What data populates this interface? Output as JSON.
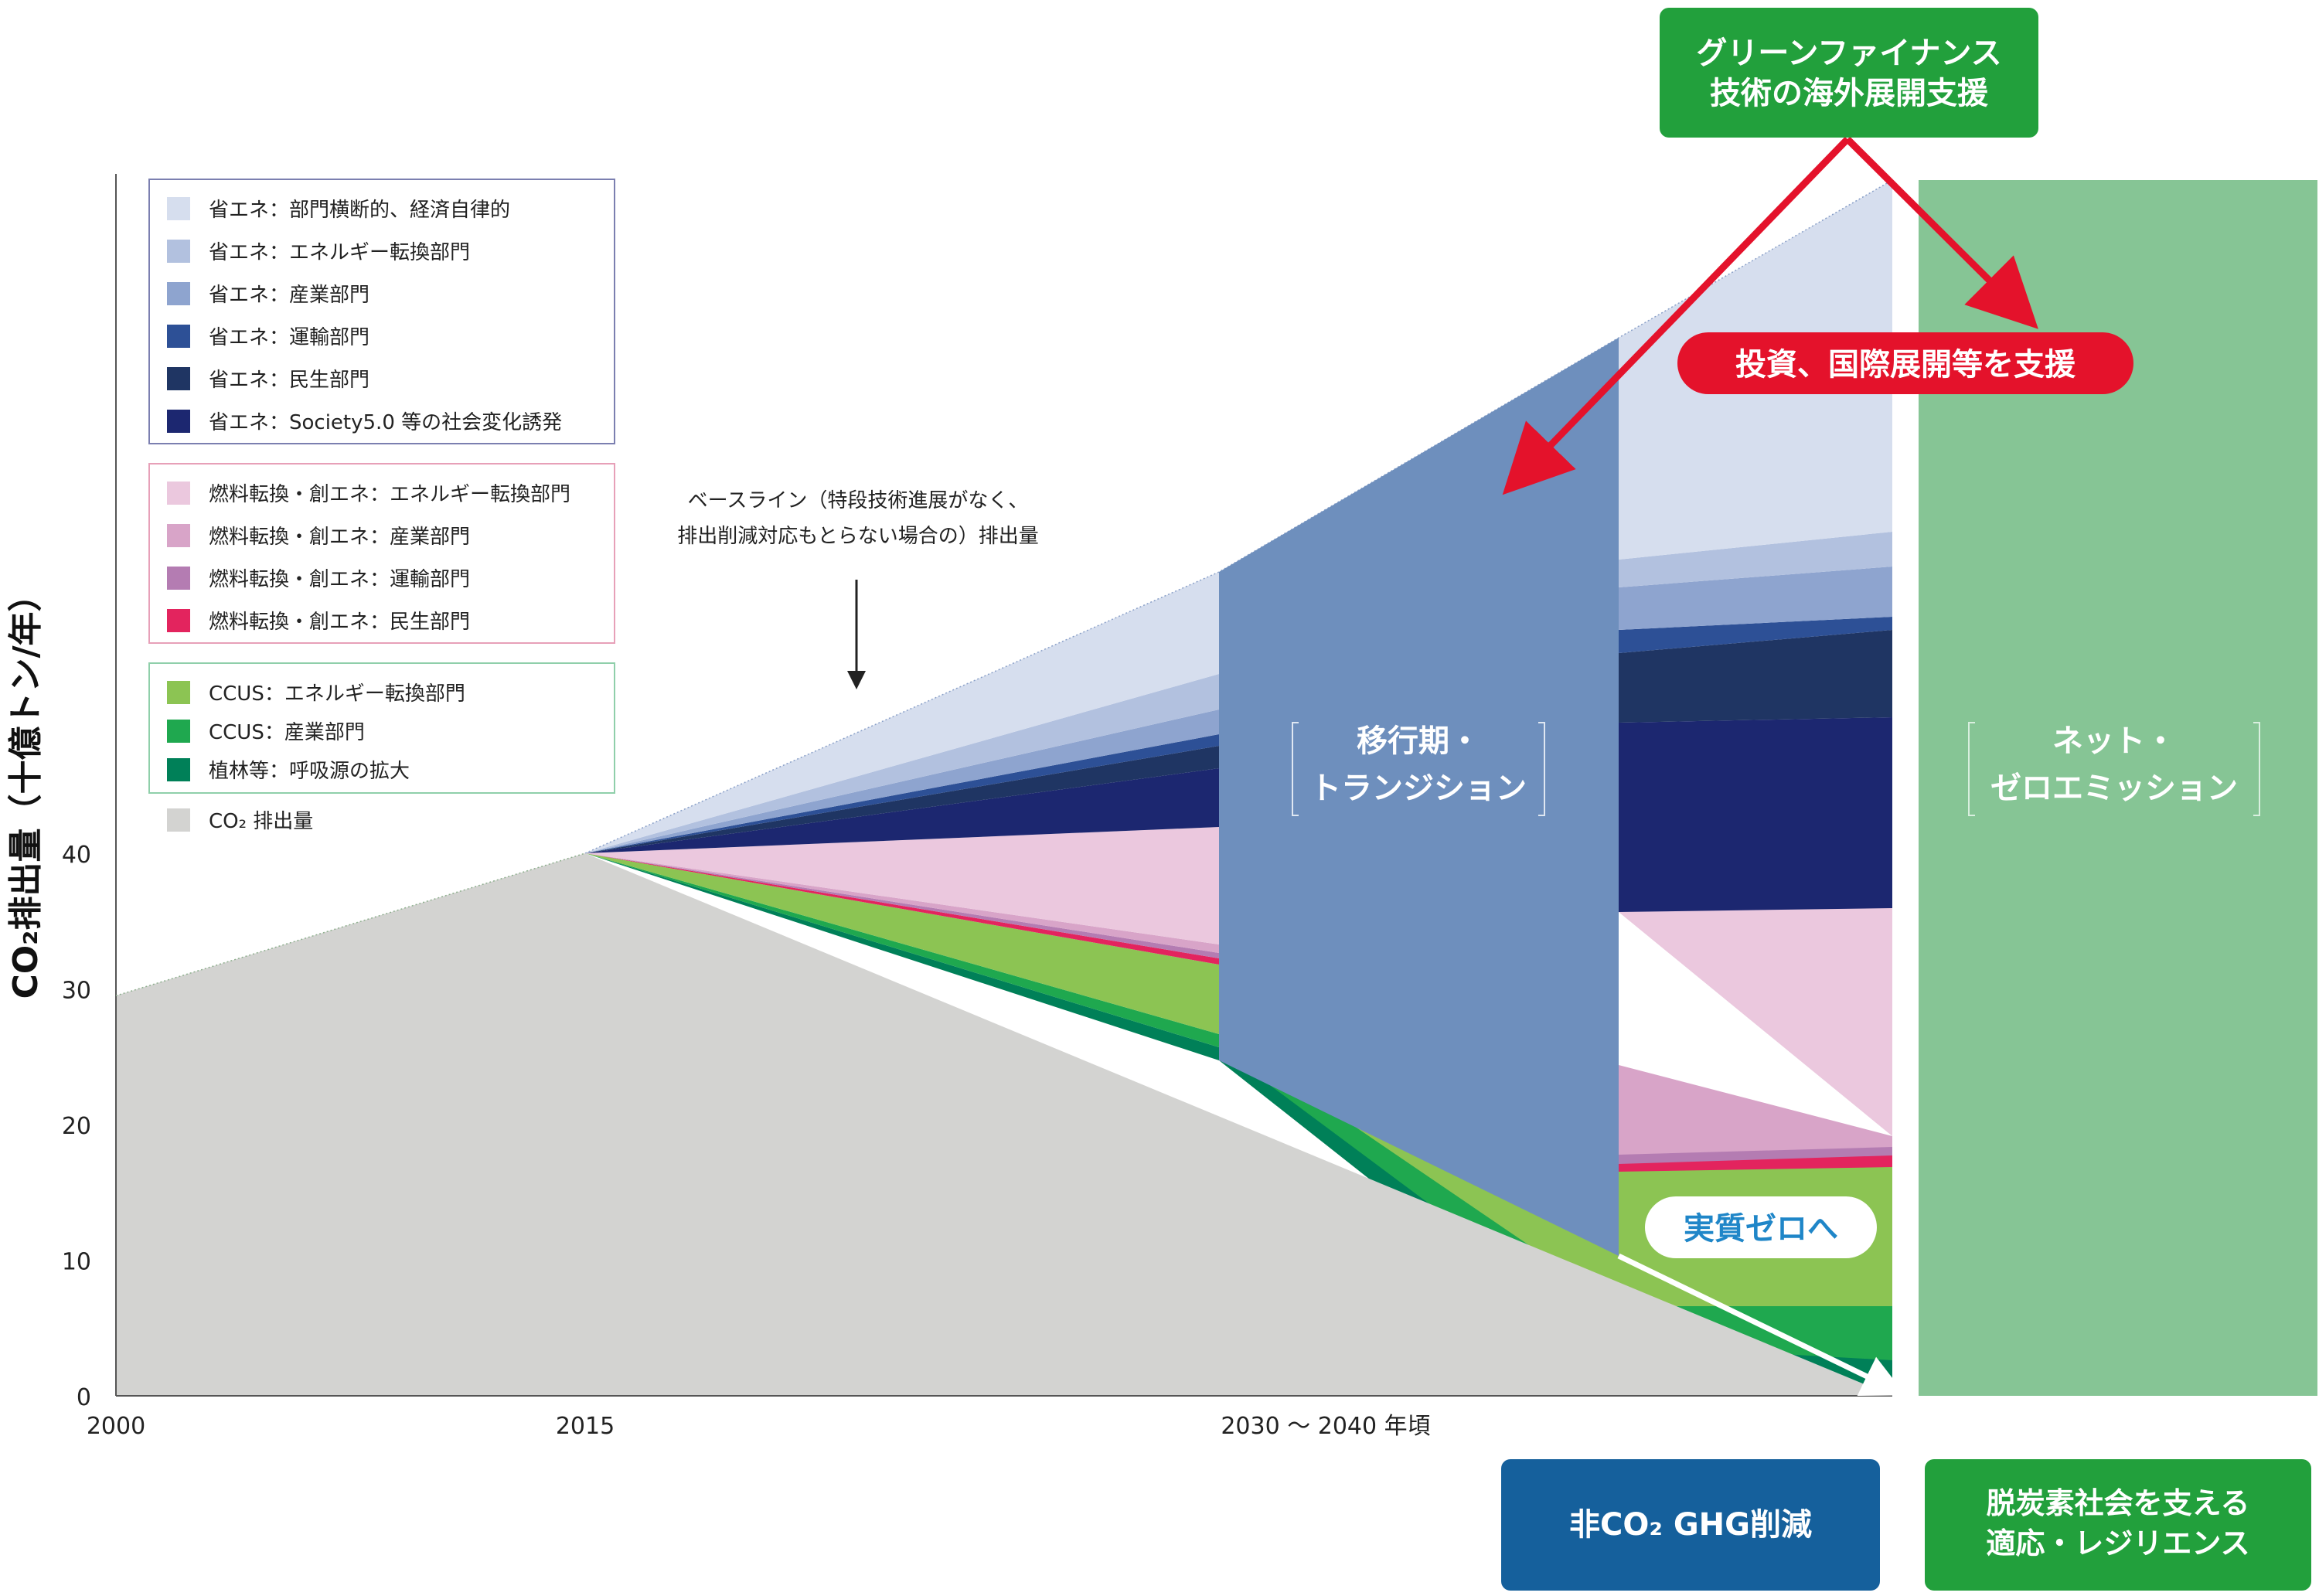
{
  "chart_data": {
    "type": "area",
    "ylabel": "CO₂排出量（十億トン/年）",
    "yticks": [
      0,
      10,
      20,
      30,
      40
    ],
    "ylim": [
      0,
      90
    ],
    "xticks": [
      "2000",
      "2015",
      "2030 ～ 2040 年頃"
    ],
    "legend_groups": [
      {
        "name": "省エネ",
        "border": "#7b7fb0",
        "items": [
          {
            "label": "省エネ：部門横断的、経済自律的",
            "color": "#d6deee"
          },
          {
            "label": "省エネ：エネルギー転換部門",
            "color": "#b2c1df"
          },
          {
            "label": "省エネ：産業部門",
            "color": "#8ea4cf"
          },
          {
            "label": "省エネ：運輸部門",
            "color": "#2d5096"
          },
          {
            "label": "省エネ：民生部門",
            "color": "#1f3563"
          },
          {
            "label": "省エネ：Society5.0 等の社会変化誘発",
            "color": "#1c2770"
          }
        ]
      },
      {
        "name": "燃料転換",
        "border": "#e7a0b8",
        "items": [
          {
            "label": "燃料転換・創エネ：エネルギー転換部門",
            "color": "#ebc8de"
          },
          {
            "label": "燃料転換・創エネ：産業部門",
            "color": "#d8a4c8"
          },
          {
            "label": "燃料転換・創エネ：運輸部門",
            "color": "#b47cb2"
          },
          {
            "label": "燃料転換・創エネ：民生部門",
            "color": "#e3245e"
          }
        ]
      },
      {
        "name": "CCUS",
        "border": "#8fcfaa",
        "items": [
          {
            "label": "CCUS：エネルギー転換部門",
            "color": "#8cc453"
          },
          {
            "label": "CCUS：産業部門",
            "color": "#1fa84f"
          },
          {
            "label": "植林等：呼吸源の拡大",
            "color": "#008058"
          }
        ]
      }
    ],
    "co2_legend": {
      "label": "CO₂ 排出量",
      "color": "#d3d3d1"
    },
    "series": [
      {
        "name": "CO₂ 排出量",
        "points": [
          [
            "2000",
            29.5
          ],
          [
            "2015",
            40
          ],
          [
            "2030 ～ 2040 年頃",
            0
          ]
        ]
      }
    ],
    "baseline_annotation": "ベースライン（特段技術進展がなく、\n排出削減対応もとらない場合の）排出量",
    "transition_label": "移行期・\nトランジション",
    "netzero_label": "ネット・\nゼロエミッション",
    "green_finance_label": "グリーンファイナンス\n技術の海外展開支援",
    "investment_label": "投資、国際展開等を支援",
    "jisshitsu_label": "実質ゼロへ",
    "non_co2_label": "非CO₂ GHG削減",
    "adaptation_label": "脱炭素社会を支える\n適応・レジリエンス"
  }
}
